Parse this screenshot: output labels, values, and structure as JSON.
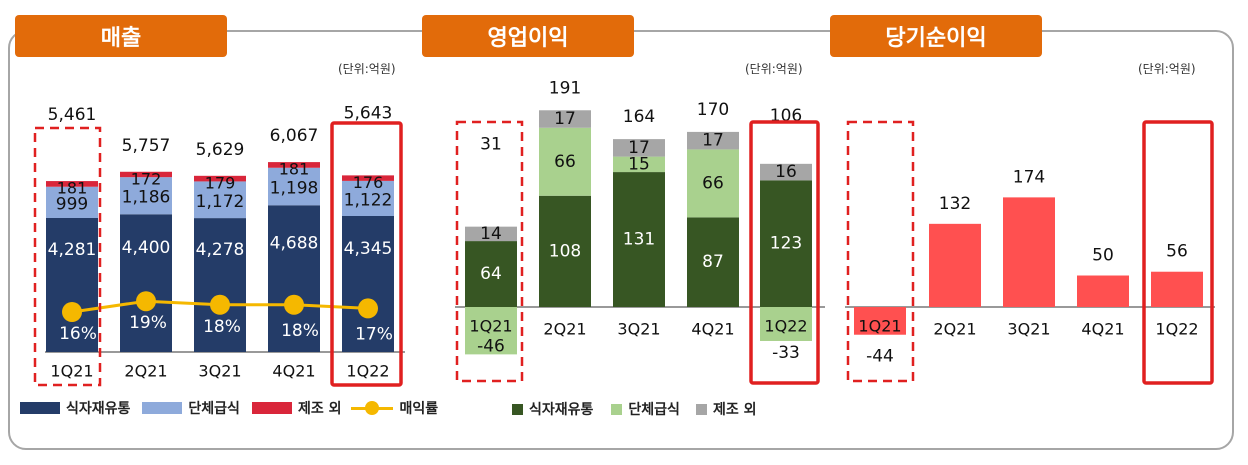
{
  "chart_data": [
    {
      "type": "bar",
      "title": "매출",
      "unit": "(단위:억원)",
      "categories": [
        "1Q21",
        "2Q21",
        "3Q21",
        "4Q21",
        "1Q22"
      ],
      "series": [
        {
          "name": "식자재유통",
          "color": "#243c68",
          "values": [
            4281,
            4400,
            4278,
            4688,
            4345
          ],
          "labels": [
            "4,281",
            "4,400",
            "4,278",
            "4,688",
            "4,345"
          ]
        },
        {
          "name": "단체급식",
          "color": "#8eaadb",
          "values": [
            999,
            1186,
            1172,
            1198,
            1122
          ],
          "labels": [
            "999",
            "1,186",
            "1,172",
            "1,198",
            "1,122"
          ]
        },
        {
          "name": "제조 외",
          "color": "#d9263a",
          "values": [
            181,
            172,
            179,
            181,
            176
          ],
          "labels": [
            "181",
            "172",
            "179",
            "181",
            "176"
          ]
        }
      ],
      "totals": [
        "5,461",
        "5,757",
        "5,629",
        "6,067",
        "5,643"
      ],
      "line": {
        "name": "매익률",
        "color": "#f5b800",
        "values": [
          16,
          19,
          18,
          18,
          17
        ],
        "labels": [
          "16%",
          "19%",
          "18%",
          "18%",
          "17%"
        ]
      },
      "highlight_dashed": "1Q21",
      "highlight_solid": "1Q22"
    },
    {
      "type": "bar",
      "title": "영업이익",
      "unit": "(단위:억원)",
      "categories": [
        "1Q21",
        "2Q21",
        "3Q21",
        "4Q21",
        "1Q22"
      ],
      "series": [
        {
          "name": "식자재유통",
          "color": "#375623",
          "values": [
            64,
            108,
            131,
            87,
            123
          ],
          "labels": [
            "64",
            "108",
            "131",
            "87",
            "123"
          ]
        },
        {
          "name": "단체급식",
          "color": "#a9d18e",
          "values": [
            -46,
            66,
            15,
            66,
            -33
          ],
          "labels": [
            "-46",
            "66",
            "15",
            "66",
            "-33"
          ]
        },
        {
          "name": "제조 외",
          "color": "#a6a6a6",
          "values": [
            14,
            17,
            17,
            17,
            16
          ],
          "labels": [
            "14",
            "17",
            "17",
            "17",
            "16"
          ]
        }
      ],
      "totals": [
        "31",
        "191",
        "164",
        "170",
        "106"
      ],
      "highlight_dashed": "1Q21",
      "highlight_solid": "1Q22"
    },
    {
      "type": "bar",
      "title": "당기순이익",
      "unit": "(단위:억원)",
      "categories": [
        "1Q21",
        "2Q21",
        "3Q21",
        "4Q21",
        "1Q22"
      ],
      "series": [
        {
          "color": "#ff5050",
          "values": [
            -44,
            132,
            174,
            50,
            56
          ],
          "labels": [
            "-44",
            "132",
            "174",
            "50",
            "56"
          ]
        }
      ],
      "highlight_dashed": "1Q21",
      "highlight_solid": "1Q22"
    }
  ]
}
